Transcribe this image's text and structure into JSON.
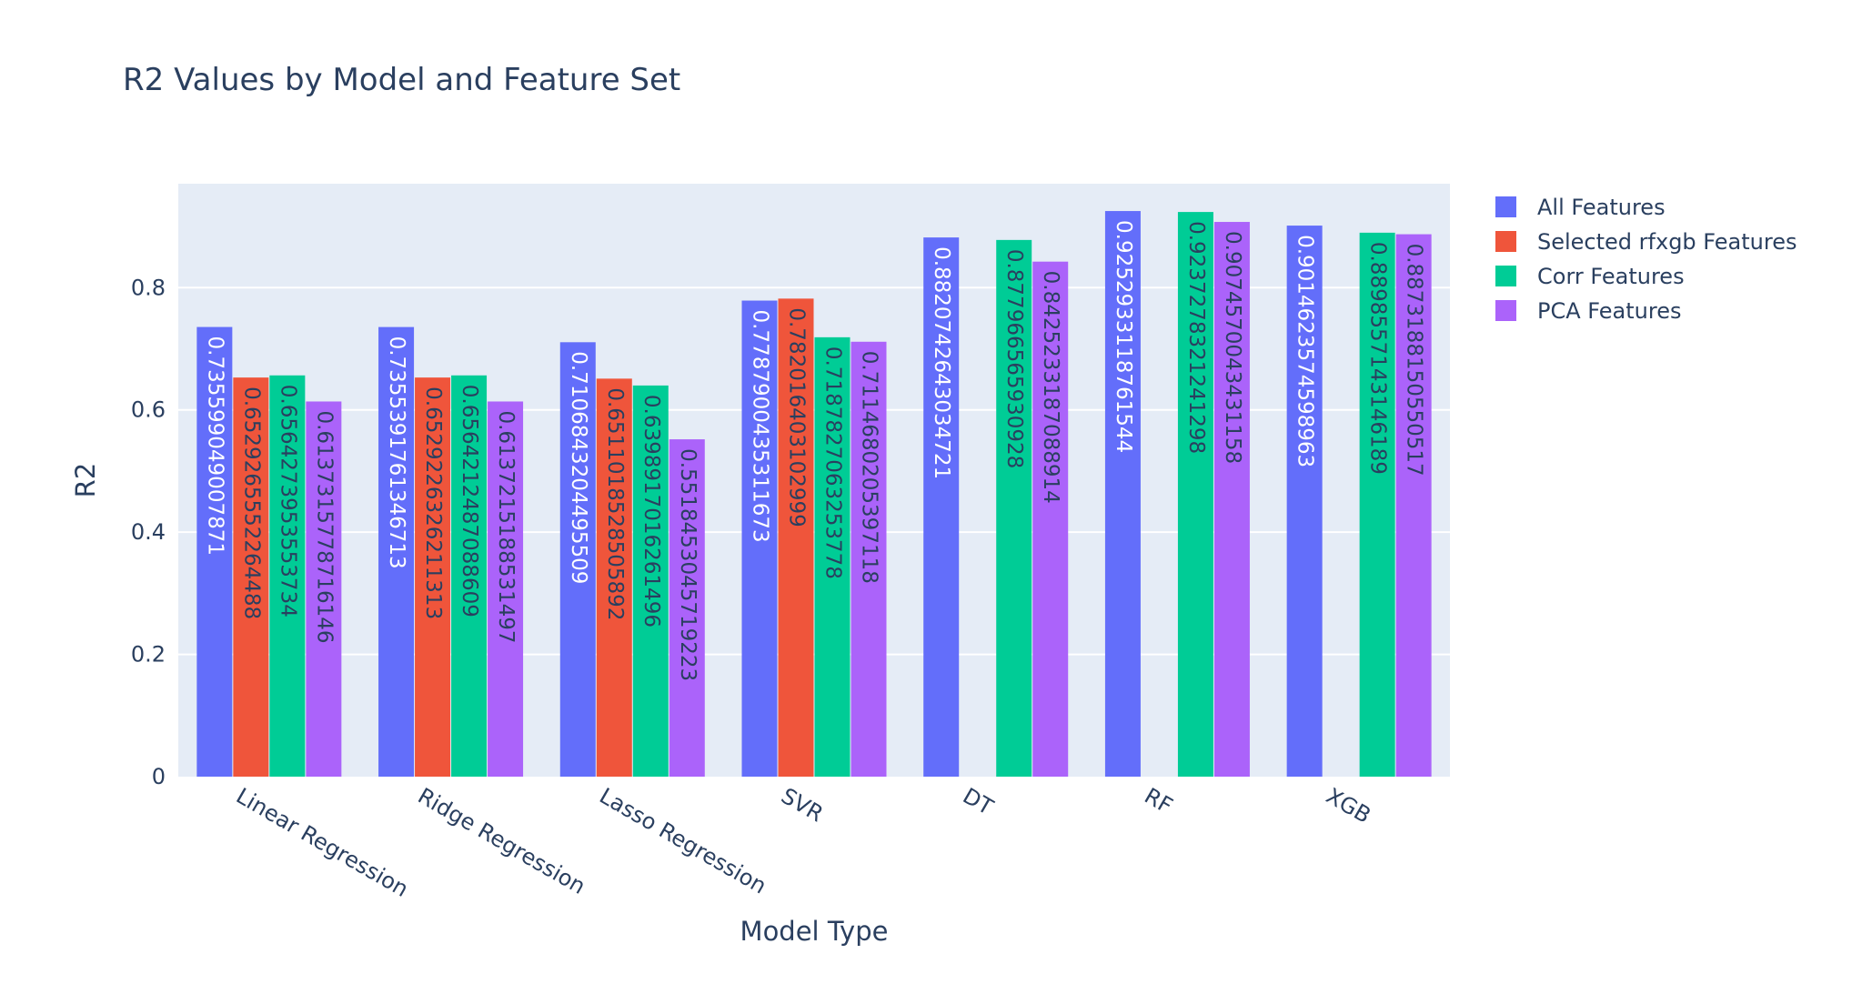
{
  "chart_data": {
    "type": "bar",
    "title": "R2 Values by Model and Feature Set",
    "xlabel": "Model Type",
    "ylabel": "R2",
    "categories": [
      "Linear Regression",
      "Ridge Regression",
      "Lasso Regression",
      "SVR",
      "DT",
      "RF",
      "XGB"
    ],
    "ylim": [
      0,
      0.97
    ],
    "yticks": [
      0,
      0.2,
      0.4,
      0.6,
      0.8
    ],
    "ytick_labels": [
      "0",
      "0.2",
      "0.4",
      "0.6",
      "0.8"
    ],
    "grid": true,
    "legend_position": "top-right",
    "plot_background": "#e5ecf6",
    "series": [
      {
        "name": "All Features",
        "color": "#636efa",
        "values": [
          0.735599049007871,
          0.7355391761346713,
          0.7106843204495509,
          0.7787900435311673,
          0.8820742643034721,
          0.9252933118761544,
          0.9014623574598963
        ],
        "labels": [
          "0.735599049007871",
          "0.7355391761346713",
          "0.7106843204495509",
          "0.7787900435311673",
          "0.8820742643034721",
          "0.9252933118761544",
          "0.9014623574598963"
        ]
      },
      {
        "name": "Selected rfxgb Features",
        "color": "#ef553b",
        "values": [
          0.6529265552264488,
          0.6529226326211313,
          0.6511018528505892,
          0.782016403102999,
          null,
          null,
          null
        ],
        "labels": [
          "0.6529265552264488",
          "0.6529226326211313",
          "0.6511018528505892",
          "0.782016403102999",
          "",
          "",
          ""
        ]
      },
      {
        "name": "Corr Features",
        "color": "#00cc96",
        "values": [
          0.6564273953553734,
          0.6564212487088609,
          0.6398917016261496,
          0.7187827063253778,
          0.877966565930928,
          0.9237278321241298,
          0.8898557143146189
        ],
        "labels": [
          "0.6564273953553734",
          "0.6564212487088609",
          "0.6398917016261496",
          "0.7187827063253778",
          "0.877966565930928",
          "0.9237278321241298",
          "0.8898557143146189"
        ]
      },
      {
        "name": "PCA Features",
        "color": "#ab63fa",
        "values": [
          0.6137315778716146,
          0.6137215188531497,
          0.5518453045719223,
          0.7114680205397118,
          0.8425233187088914,
          0.9074570043431158,
          0.8873188150550517
        ],
        "labels": [
          "0.6137315778716146",
          "0.6137215188531497",
          "0.5518453045719223",
          "0.7114680205397118",
          "0.8425233187088914",
          "0.9074570043431158",
          "0.8873188150550517"
        ]
      }
    ]
  }
}
